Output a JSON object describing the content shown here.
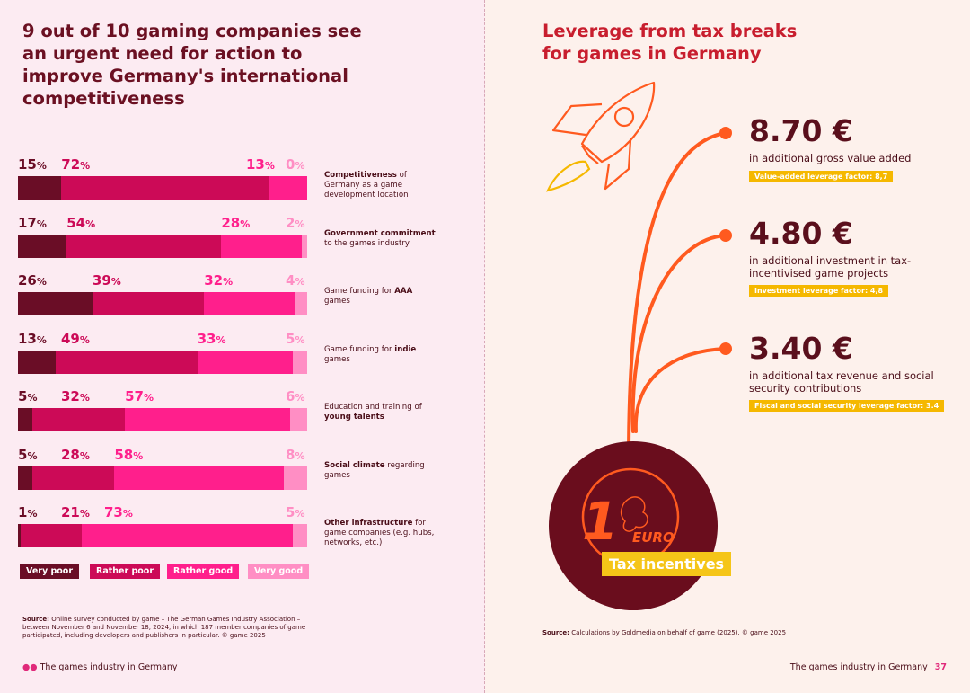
{
  "left": {
    "title": "9 out of 10 gaming companies see an urgent need for action to improve Germany's international competitiveness",
    "legend": [
      "Very poor",
      "Rather poor",
      "Rather good",
      "Very good"
    ],
    "source_label": "Source:",
    "source_text": "Online survey conducted by game – The German Games Industry Association – between November 6 and November 18, 2024, in which 187 member companies of game participated, including developers and publishers in particular. © game 2025",
    "footer": "The games industry in Germany"
  },
  "colors": {
    "very_poor": "#6a0d26",
    "rather_poor": "#cc0a57",
    "rather_good": "#ff1f8c",
    "very_good": "#ff8ec4"
  },
  "chart_data": {
    "type": "bar",
    "orientation": "horizontal-stacked-100",
    "series_names": [
      "Very poor",
      "Rather poor",
      "Rather good",
      "Very good"
    ],
    "unit": "%",
    "categories": [
      {
        "label_pre": "",
        "label_bold": "Competitiveness",
        "label_post": " of Germany as a game development location",
        "values": [
          15,
          72,
          13,
          0
        ]
      },
      {
        "label_pre": "",
        "label_bold": "Government commitment",
        "label_post": " to the games industry",
        "values": [
          17,
          54,
          28,
          2
        ]
      },
      {
        "label_pre": "Game funding for ",
        "label_bold": "AAA",
        "label_post": " games",
        "values": [
          26,
          39,
          32,
          4
        ]
      },
      {
        "label_pre": "Game funding for ",
        "label_bold": "indie",
        "label_post": " games",
        "values": [
          13,
          49,
          33,
          5
        ]
      },
      {
        "label_pre": "Education and training of ",
        "label_bold": "young talents",
        "label_post": "",
        "values": [
          5,
          32,
          57,
          6
        ]
      },
      {
        "label_pre": "",
        "label_bold": "Social climate",
        "label_post": " regarding games",
        "values": [
          5,
          28,
          58,
          8
        ]
      },
      {
        "label_pre": "",
        "label_bold": "Other infrastructure",
        "label_post": " for game companies (e.g. hubs, networks, etc.)",
        "values": [
          1,
          21,
          73,
          5
        ]
      }
    ]
  },
  "right": {
    "title": "Leverage from tax breaks for games in Germany",
    "stats": [
      {
        "amount": "8.70 €",
        "desc": "in additional gross value added",
        "factor": "Value-added leverage factor: 8,7"
      },
      {
        "amount": "4.80 €",
        "desc": "in additional investment in tax-incentivised game projects",
        "factor": "Investment leverage factor: 4,8"
      },
      {
        "amount": "3.40 €",
        "desc": "in additional tax revenue and social security contributions",
        "factor": "Fiscal and social security leverage factor: 3.4"
      }
    ],
    "coin_number": "1",
    "coin_text": "EURO",
    "tax_label": "Tax incentives",
    "source_label": "Source:",
    "source_text": "Calculations by Goldmedia on behalf of game (2025). © game 2025",
    "footer": "The games industry in Germany",
    "page_number": "37"
  }
}
